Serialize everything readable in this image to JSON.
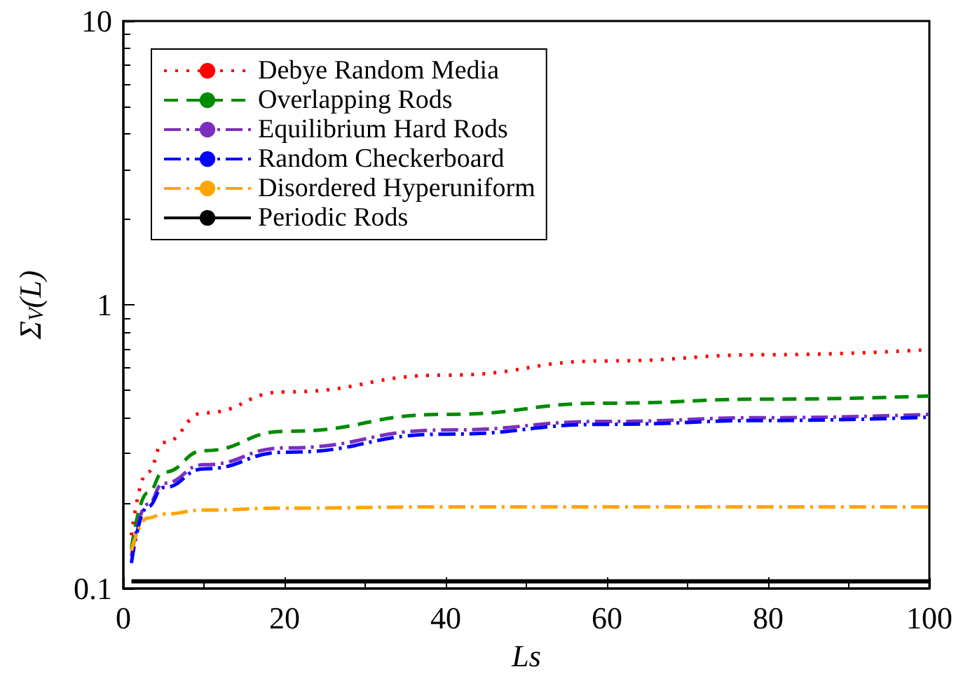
{
  "chart_data": {
    "type": "line",
    "xlabel": "Ls",
    "ylabel": "Σ$_{V}$(L)",
    "log": "y",
    "grid": false,
    "legend": "top left",
    "marker": "none",
    "x": [
      1,
      3,
      5,
      10,
      20,
      40,
      60,
      80,
      100
    ],
    "xlim": [
      0,
      100
    ],
    "xticks": [
      0,
      20,
      40,
      60,
      80,
      100
    ],
    "ylim": [
      0.1,
      10
    ],
    "yticks": [
      0.1,
      1,
      10
    ],
    "series": [
      {
        "name": "Debye Random Media",
        "color": "#ff0000",
        "line_style": "dotted",
        "values": [
          0.154,
          0.257,
          0.327,
          0.416,
          0.493,
          0.565,
          0.634,
          0.667,
          0.695
        ]
      },
      {
        "name": "Overlapping Rods",
        "color": "#008b00",
        "line_style": "dashed",
        "values": [
          0.138,
          0.217,
          0.257,
          0.306,
          0.358,
          0.411,
          0.45,
          0.465,
          0.477
        ]
      },
      {
        "name": "Equilibrium Hard Rods",
        "color": "#7b2fbe",
        "line_style": "dashdot",
        "values": [
          0.13,
          0.198,
          0.235,
          0.273,
          0.313,
          0.362,
          0.388,
          0.4,
          0.411
        ]
      },
      {
        "name": "Random Checkerboard",
        "color": "#0000ff",
        "line_style": "dashdot",
        "values": [
          0.123,
          0.194,
          0.227,
          0.264,
          0.302,
          0.35,
          0.379,
          0.391,
          0.402
        ]
      },
      {
        "name": "Disordered Hyperuniform",
        "color": "#ffa500",
        "line_style": "dashdot",
        "values": [
          0.136,
          0.177,
          0.183,
          0.189,
          0.192,
          0.194,
          0.194,
          0.194,
          0.194
        ]
      },
      {
        "name": "Periodic Rods",
        "color": "#000000",
        "line_style": "solid",
        "values": [
          0.106,
          0.106,
          0.106,
          0.106,
          0.106,
          0.106,
          0.106,
          0.106,
          0.106
        ]
      }
    ]
  }
}
